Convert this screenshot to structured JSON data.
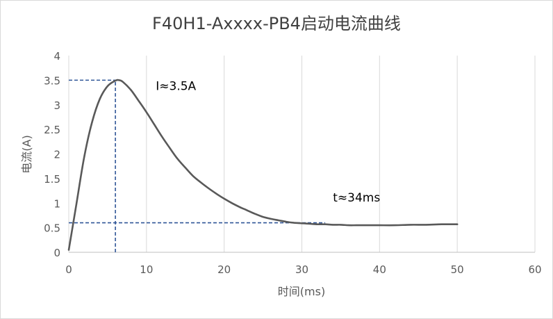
{
  "chart_data": {
    "type": "line",
    "title": "F40H1-Axxxx-PB4启动电流曲线",
    "xlabel": "时间(ms)",
    "ylabel": "电流(A)",
    "xlim": [
      0,
      60
    ],
    "ylim": [
      0,
      4
    ],
    "x_ticks": [
      "0",
      "10",
      "20",
      "30",
      "40",
      "50",
      "60"
    ],
    "y_ticks": [
      "0",
      "0.5",
      "1",
      "1.5",
      "2",
      "2.5",
      "3",
      "3.5",
      "4"
    ],
    "grid": "vertical",
    "legend": "none",
    "line_color": "#595959",
    "guide_color": "#2f5597",
    "series": [
      {
        "x": [
          0,
          1,
          2,
          3,
          4,
          5,
          6,
          6.5,
          7,
          8,
          9,
          10,
          11,
          12,
          13,
          14,
          15,
          16,
          17,
          18,
          19,
          20,
          21,
          22,
          23,
          24,
          25,
          26,
          27,
          28,
          29,
          30,
          31,
          32,
          33,
          34,
          35,
          36,
          37,
          38,
          39,
          40,
          42,
          44,
          46,
          48,
          50
        ],
        "y": [
          0.05,
          1.0,
          1.95,
          2.65,
          3.12,
          3.38,
          3.49,
          3.5,
          3.46,
          3.3,
          3.08,
          2.85,
          2.6,
          2.35,
          2.12,
          1.9,
          1.72,
          1.55,
          1.42,
          1.3,
          1.19,
          1.09,
          1.0,
          0.92,
          0.85,
          0.78,
          0.72,
          0.68,
          0.65,
          0.62,
          0.6,
          0.59,
          0.58,
          0.57,
          0.57,
          0.56,
          0.56,
          0.55,
          0.55,
          0.55,
          0.55,
          0.55,
          0.55,
          0.56,
          0.56,
          0.57,
          0.57
        ]
      }
    ],
    "guides": [
      {
        "orientation": "horizontal",
        "y": 3.5,
        "x_from": 0,
        "x_to": 6
      },
      {
        "orientation": "vertical",
        "x": 6,
        "y_from": 0,
        "y_to": 3.5
      },
      {
        "orientation": "horizontal",
        "y": 0.6,
        "x_from": 0,
        "x_to": 33
      }
    ],
    "annotations": [
      {
        "text": "I≈3.5A",
        "x": 11.2,
        "y": 3.3
      },
      {
        "text": "t≈34ms",
        "x": 34,
        "y": 1.03
      }
    ]
  }
}
